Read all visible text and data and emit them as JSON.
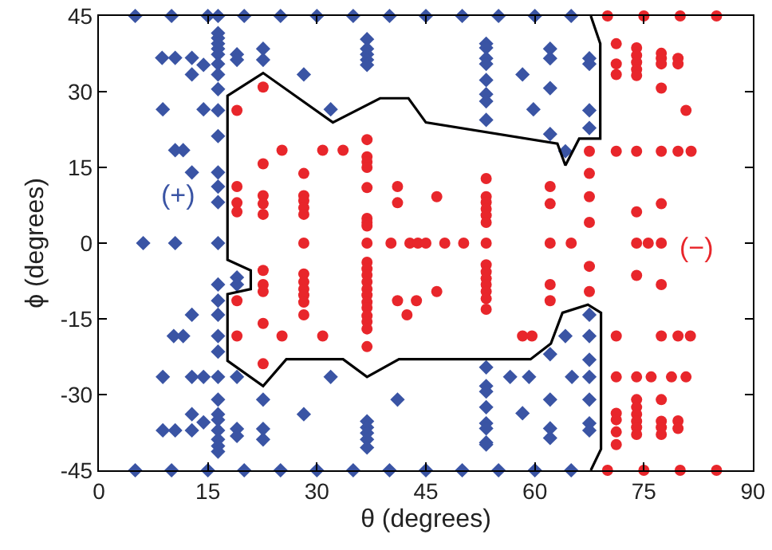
{
  "chart_data": {
    "type": "scatter",
    "xlabel": "θ (degrees)",
    "ylabel": "ϕ (degrees)",
    "xlim": [
      0,
      90
    ],
    "xticks": [
      0,
      15,
      30,
      45,
      60,
      75,
      90
    ],
    "ylim": [
      -45,
      45
    ],
    "yticks": [
      -45,
      -30,
      -15,
      0,
      15,
      30,
      45
    ],
    "grid": false,
    "annotations": [
      "(+)",
      "(−)"
    ],
    "series": [
      {
        "color": "#3a54a4",
        "marker": "diamond",
        "x": [
          5,
          10,
          15,
          16.4,
          20,
          25,
          30,
          35,
          40,
          45,
          50,
          55,
          60,
          65,
          5,
          10,
          15,
          20,
          25,
          30,
          35,
          40,
          45,
          50,
          55,
          60,
          65,
          16.4,
          16.4,
          16.4,
          16.4,
          16.4,
          16.4,
          16.4,
          16.4,
          16.4,
          16.4,
          16.4,
          16.4,
          16.4,
          16.4,
          16.4,
          16.4,
          16.4,
          16.4,
          16.4,
          16.4,
          16.4,
          16.4,
          16.4,
          16.4,
          16.4,
          16.4,
          16.4,
          8.7,
          10.5,
          12.8,
          12.8,
          14.4,
          19,
          19,
          22.6,
          22.6,
          28.2,
          8.8,
          14.4,
          31.9,
          10.5,
          11.6,
          12.8,
          36.9,
          36.9,
          36.9,
          36.9,
          36.9,
          6.1,
          10.5,
          19,
          19,
          12.8,
          10.3,
          11.6,
          8.8,
          12.8,
          14.4,
          19,
          31.9,
          22.6,
          41.1,
          12.8,
          14.4,
          28.2,
          8.8,
          10.5,
          12.8,
          19,
          19,
          22.6,
          22.6,
          36.9,
          36.9,
          36.9,
          36.9,
          36.9,
          53.3,
          53.3,
          53.3,
          53.3,
          53.3,
          53.3,
          53.3,
          53.3,
          58.3,
          59.8,
          62.1,
          62.1,
          62.1,
          62.1,
          64.2,
          67.5,
          67.5,
          67.5,
          67.5,
          53.3,
          56.6,
          59.2,
          65.1,
          53.3,
          53.3,
          53.3,
          53.3,
          53.3,
          53.3,
          53.3,
          58.3,
          62.1,
          62.1,
          62.1,
          62.1,
          64.2,
          67.5,
          67.5,
          67.5,
          67.5,
          67.5,
          67.5,
          67.5
        ],
        "values": [
          45,
          45,
          45,
          45,
          45,
          45,
          45,
          45,
          45,
          45,
          45,
          45,
          45,
          45,
          -45,
          -45,
          -45,
          -45,
          -45,
          -45,
          -45,
          -45,
          -45,
          -45,
          -45,
          -45,
          -45,
          41.6,
          40.6,
          39.5,
          38.5,
          37.4,
          35.5,
          33.4,
          30.5,
          26.3,
          21.2,
          14.0,
          11.2,
          8.1,
          0,
          -8.2,
          -11.4,
          -14.2,
          -18.4,
          -21.5,
          -26.5,
          -31.0,
          -33.9,
          -35.0,
          -37.1,
          -38.9,
          -40.2,
          -41.3,
          36.7,
          36.7,
          36.7,
          33.4,
          35.3,
          37.4,
          36.3,
          38.5,
          36.3,
          33.4,
          26.5,
          26.5,
          26.5,
          18.4,
          18.4,
          14.0,
          40.4,
          38.5,
          37.4,
          36.3,
          35.3,
          0,
          0,
          -6.8,
          -8.2,
          -14.2,
          -18.4,
          -18.4,
          -26.5,
          -26.5,
          -26.5,
          -26.5,
          -26.5,
          -31.0,
          -31.0,
          -33.9,
          -35.5,
          -33.9,
          -37.1,
          -37.1,
          -37.1,
          -36.8,
          -38.2,
          -36.8,
          -38.9,
          -35.3,
          -36.5,
          -37.6,
          -38.9,
          -40.5,
          39.5,
          38.7,
          36.6,
          35.5,
          32.3,
          29.5,
          28.1,
          24.4,
          33.4,
          26.5,
          38.5,
          36.6,
          30.7,
          21.6,
          18.2,
          36.6,
          35.5,
          26.3,
          22.8,
          -24.6,
          -26.5,
          -26.5,
          -26.5,
          -28.3,
          -29.4,
          -32.5,
          -35.7,
          -36.7,
          -39.5,
          -39.9,
          -33.7,
          -22.0,
          -31.0,
          -36.7,
          -38.6,
          -18.4,
          -14.2,
          -18.4,
          -23.1,
          -26.5,
          -31.0,
          -35.7,
          -37.1
        ]
      },
      {
        "color": "#e8262b",
        "marker": "circle",
        "x": [
          70,
          75,
          80,
          85,
          70,
          75,
          80,
          85,
          19,
          22.6,
          22.6,
          25.2,
          30.8,
          33.6,
          28.2,
          36.9,
          36.9,
          36.9,
          36.9,
          36.9,
          36.9,
          36.9,
          36.9,
          19,
          19,
          19,
          22.6,
          22.6,
          22.6,
          28.2,
          28.2,
          28.2,
          28.2,
          41.1,
          41.1,
          28.2,
          36.9,
          40.2,
          42.8,
          43.9,
          45,
          47.6,
          50.2,
          53.3,
          62.1,
          65,
          74,
          75.6,
          77.4,
          71.2,
          71.2,
          71.2,
          74,
          74,
          74,
          74,
          74,
          77.4,
          77.4,
          77.4,
          77.4,
          79.7,
          79.7,
          80.8,
          67.5,
          71.2,
          74,
          77.4,
          79.7,
          81.5,
          53.3,
          46.5,
          53.3,
          53.3,
          53.3,
          53.3,
          53.3,
          62.1,
          62.1,
          67.5,
          67.5,
          67.5,
          74,
          77.4,
          36.9,
          36.9,
          36.9,
          36.9,
          36.9,
          36.9,
          36.9,
          36.9,
          36.9,
          36.9,
          36.9,
          36.9,
          22.6,
          22.6,
          22.6,
          22.6,
          22.6,
          28.2,
          28.2,
          28.2,
          28.2,
          28.2,
          28.2,
          19,
          19,
          25.2,
          30.8,
          41.1,
          43.7,
          42.4,
          53.3,
          53.3,
          53.3,
          53.3,
          53.3,
          53.3,
          53.3,
          46.5,
          62.1,
          62.1,
          67.5,
          67.5,
          74,
          77.4,
          58.3,
          59.6,
          71.2,
          77.4,
          79.7,
          81.4,
          71.2,
          74,
          76,
          78.8,
          80.8,
          74,
          77.4,
          71.2,
          71.2,
          71.2,
          71.2,
          74,
          74,
          74,
          74,
          74,
          77.4,
          77.4,
          77.4,
          79.7,
          79.7
        ],
        "values": [
          45,
          45,
          45,
          45,
          -45,
          -45,
          -45,
          -45,
          26.3,
          30.9,
          15.7,
          18.4,
          18.4,
          18.4,
          13.8,
          20.5,
          17.1,
          16.1,
          15,
          11,
          4.9,
          4.1,
          3.4,
          11.2,
          8,
          6.2,
          9.4,
          7.8,
          5.7,
          9.4,
          8.4,
          7,
          5.7,
          11.2,
          8,
          0,
          0,
          0,
          0,
          0,
          0,
          0,
          0,
          0,
          0,
          0,
          0,
          0,
          0,
          39.5,
          35.5,
          33.4,
          38.7,
          37.2,
          35.8,
          34.4,
          33.2,
          37.6,
          36.6,
          35.5,
          30.7,
          36.6,
          35.5,
          26.3,
          18.2,
          18.2,
          18.2,
          18.2,
          18.2,
          18.2,
          12.8,
          9.2,
          9.2,
          8.1,
          6.8,
          5.5,
          4.1,
          11.2,
          7.8,
          13.8,
          9.2,
          4.1,
          6.2,
          7.8,
          -3.8,
          -5.1,
          -6.3,
          -7.7,
          -9.1,
          -10.3,
          -11.7,
          -12.8,
          -14.4,
          -15.6,
          -17,
          -20.5,
          -5.4,
          -8.2,
          -9.6,
          -15.9,
          -23.9,
          -6.1,
          -7.7,
          -9.1,
          -10.3,
          -11.7,
          -14.2,
          -11.4,
          -18.4,
          -18.4,
          -18.4,
          -11.4,
          -11.4,
          -14.2,
          -4.3,
          -5.7,
          -7,
          -8.2,
          -9.6,
          -11,
          -13.1,
          -9.6,
          -8.2,
          -11.4,
          -4.6,
          -9.6,
          -6.4,
          -8.2,
          -18.4,
          -18.4,
          -18.4,
          -18.4,
          -18.4,
          -18.4,
          -26.5,
          -26.5,
          -26.5,
          -26.5,
          -26.5,
          -31,
          -31,
          -33.7,
          -35,
          -37.4,
          -39.9,
          -32.5,
          -33.9,
          -35.3,
          -36.5,
          -37.9,
          -35.3,
          -36.5,
          -37.9,
          -35.2,
          -36.7
        ]
      },
      {
        "type": "line",
        "color": "#000000",
        "marker": "none",
        "line_style": "solid",
        "x": [
          67.7,
          69.0,
          69.0,
          66.1,
          64.2,
          63.1,
          45.0,
          42.6,
          38.7,
          32.2,
          22.6,
          17.7,
          17.7,
          20.9,
          20.9,
          17.7,
          17.7,
          22.6,
          25.8,
          33.6,
          36.9,
          41.3,
          59.4,
          62.2,
          63.8,
          67.3,
          69.1,
          69.1,
          67.7
        ],
        "values": [
          45,
          39.5,
          20.7,
          20.7,
          15.4,
          19.7,
          23.9,
          28.7,
          28.7,
          23.9,
          33.7,
          29.2,
          -3.3,
          -5.4,
          -9.1,
          -10.1,
          -23.3,
          -28.3,
          -23,
          -23,
          -26.5,
          -23,
          -23,
          -19.9,
          -13.8,
          -12.2,
          -13.8,
          -40.8,
          -45
        ]
      }
    ]
  }
}
